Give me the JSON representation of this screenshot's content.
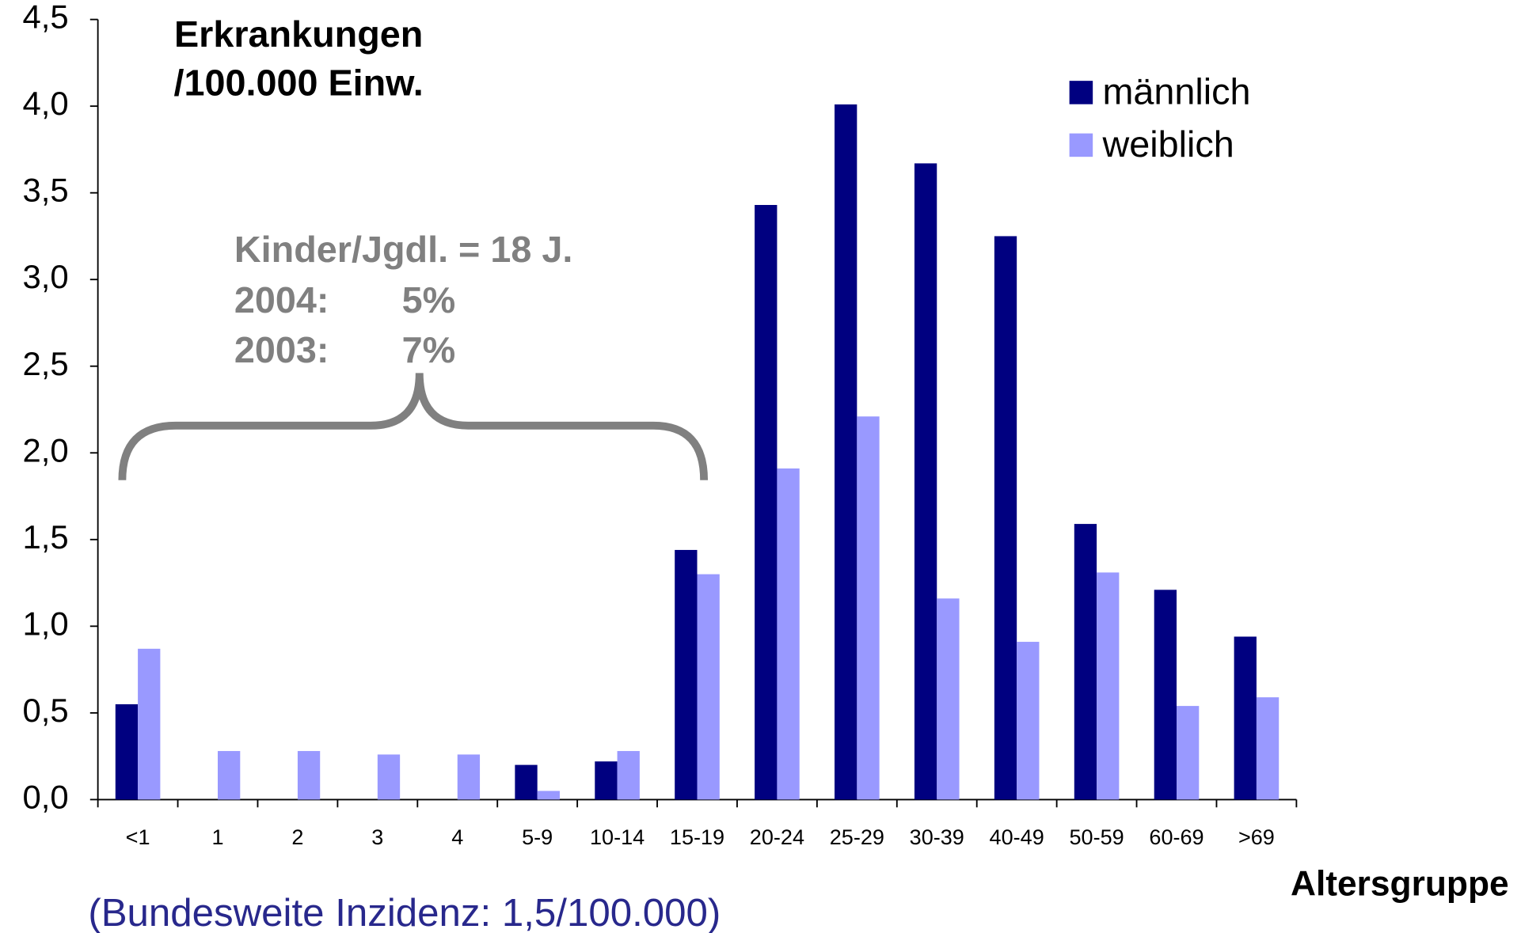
{
  "chart_data": {
    "type": "bar",
    "title": [
      "Erkrankungen",
      "/100.000 Einw."
    ],
    "x_label": "Altersgruppe",
    "note": "(Bundesweite Inzidenz: 1,5/100.000)",
    "annotation": {
      "heading": "Kinder/Jgdl. = 18 J.",
      "rows": [
        [
          "2004:",
          "5%"
        ],
        [
          "2003:",
          "7%"
        ]
      ]
    },
    "categories": [
      "<1",
      "1",
      "2",
      "3",
      "4",
      "5-9",
      "10-14",
      "15-19",
      "20-24",
      "25-29",
      "30-39",
      "40-49",
      "50-59",
      "60-69",
      ">69"
    ],
    "series": [
      {
        "name": "männlich",
        "color": "#000080",
        "values": [
          0.55,
          0,
          0,
          0,
          0,
          0.2,
          0.22,
          1.44,
          3.43,
          4.01,
          3.67,
          3.25,
          1.59,
          1.21,
          0.94
        ]
      },
      {
        "name": "weiblich",
        "color": "#9999ff",
        "values": [
          0.87,
          0.28,
          0.28,
          0.26,
          0.26,
          0.05,
          0.28,
          1.3,
          1.91,
          2.21,
          1.16,
          0.91,
          1.31,
          0.54,
          0.59
        ]
      }
    ],
    "ylim": [
      0,
      4.5
    ],
    "yticks": [
      {
        "value": 0,
        "label": "0,0"
      },
      {
        "value": 0.5,
        "label": "0,5"
      },
      {
        "value": 1,
        "label": "1,0"
      },
      {
        "value": 1.5,
        "label": "1,5"
      },
      {
        "value": 2,
        "label": "2,0"
      },
      {
        "value": 2.5,
        "label": "2,5"
      },
      {
        "value": 3,
        "label": "3,0"
      },
      {
        "value": 3.5,
        "label": "3,5"
      },
      {
        "value": 4,
        "label": "4,0"
      },
      {
        "value": 4.5,
        "label": "4,5"
      }
    ],
    "grid": false,
    "legend": "upper right"
  }
}
